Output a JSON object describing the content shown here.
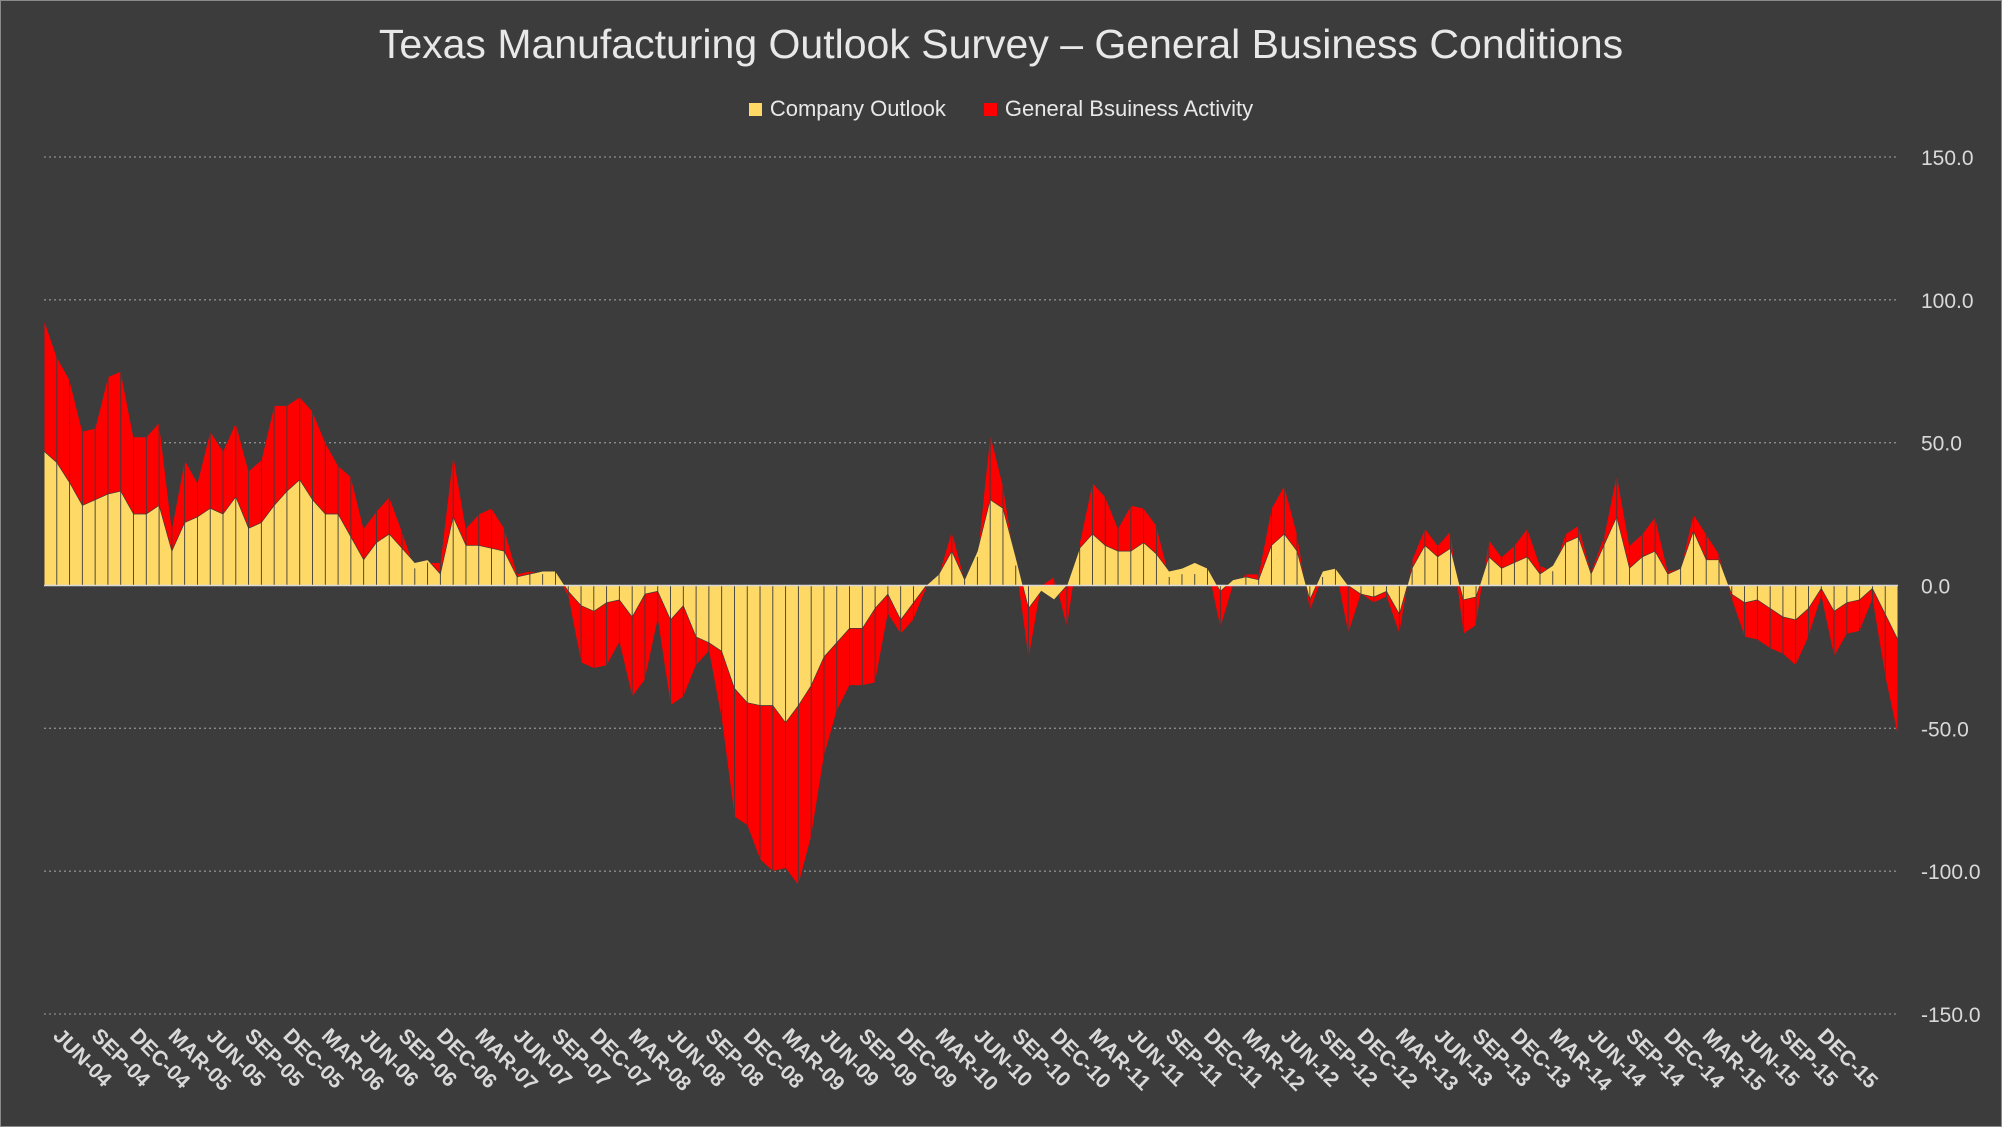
{
  "chart_data": {
    "type": "area",
    "stacked": true,
    "title": "Texas Manufacturing Outlook Survey – General Business Conditions",
    "ylim": [
      -150,
      150
    ],
    "y_ticks": [
      "150.0",
      "100.0",
      "50.0",
      "0.0",
      "-50.0",
      "-100.0",
      "-150.0"
    ],
    "y_tick_values": [
      150,
      100,
      50,
      0,
      -50,
      -100,
      -150
    ],
    "grid": "horizontal dotted",
    "legend_position": "top",
    "x_tick_labels": [
      "JUN-04",
      "SEP-04",
      "DEC-04",
      "MAR-05",
      "JUN-05",
      "SEP-05",
      "DEC-05",
      "MAR-06",
      "JUN-06",
      "SEP-06",
      "DEC-06",
      "MAR-07",
      "JUN-07",
      "SEP-07",
      "DEC-07",
      "MAR-08",
      "JUN-08",
      "SEP-08",
      "DEC-08",
      "MAR-09",
      "JUN-09",
      "SEP-09",
      "DEC-09",
      "MAR-10",
      "JUN-10",
      "SEP-10",
      "DEC-10",
      "MAR-11",
      "JUN-11",
      "SEP-11",
      "DEC-11",
      "MAR-12",
      "JUN-12",
      "SEP-12",
      "DEC-12",
      "MAR-13",
      "JUN-13",
      "SEP-13",
      "DEC-13",
      "MAR-14",
      "JUN-14",
      "SEP-14",
      "DEC-14",
      "MAR-15",
      "JUN-15",
      "SEP-15",
      "DEC-15"
    ],
    "series": [
      {
        "name": "Company Outlook",
        "color": "#ffd966",
        "values": [
          47,
          43,
          36,
          28,
          30,
          32,
          33,
          25,
          25,
          28,
          12,
          22,
          24,
          27,
          25,
          31,
          20,
          22,
          28,
          33,
          37,
          30,
          25,
          25,
          17,
          9,
          15,
          18,
          13,
          8,
          9,
          4,
          24,
          14,
          14,
          13,
          12,
          3,
          4,
          5,
          5,
          -2,
          -7,
          -9,
          -6,
          -5,
          -11,
          -3,
          -2,
          -12,
          -7,
          -18,
          -20,
          -23,
          -36,
          -41,
          -42,
          -42,
          -48,
          -42,
          -35,
          -25,
          -20,
          -15,
          -15,
          -8,
          -3,
          -12,
          -6,
          0,
          4,
          12,
          2,
          12,
          30,
          27,
          10,
          -8,
          -2,
          -5,
          0,
          13,
          18,
          14,
          12,
          12,
          15,
          11,
          5,
          6,
          8,
          6,
          -2,
          2,
          3,
          2,
          14,
          18,
          12,
          -5,
          5,
          6,
          0,
          -3,
          -4,
          -2,
          -10,
          6,
          14,
          10,
          13,
          -5,
          -4,
          10,
          6,
          8,
          10,
          4,
          7,
          15,
          17,
          4,
          14,
          24,
          6,
          10,
          12,
          4,
          6,
          19,
          9,
          9,
          -3,
          -6,
          -5,
          -8,
          -11,
          -12,
          -8,
          -1,
          -9,
          -6,
          -5,
          -1,
          -10,
          -19
        ]
      },
      {
        "name": "General Bsuiness Activity",
        "color": "#ff0000",
        "values": [
          46,
          37,
          36,
          26,
          25,
          41,
          42,
          27,
          27,
          29,
          8,
          22,
          12,
          27,
          22,
          26,
          20,
          22,
          35,
          30,
          29,
          31,
          25,
          17,
          21,
          11,
          11,
          13,
          6,
          -2,
          -1,
          4,
          22,
          6,
          11,
          14,
          8,
          1,
          1,
          -1,
          0,
          -2,
          -20,
          -20,
          -22,
          -15,
          -28,
          -30,
          -10,
          -30,
          -32,
          -10,
          -3,
          -24,
          -45,
          -43,
          -54,
          -58,
          -51,
          -63,
          -53,
          -35,
          -24,
          -20,
          -20,
          -26,
          -7,
          -5,
          -6,
          -1,
          0,
          7,
          0,
          -2,
          23,
          8,
          -3,
          -18,
          2,
          8,
          -15,
          2,
          18,
          17,
          8,
          16,
          12,
          10,
          -2,
          -2,
          -4,
          0,
          -13,
          -2,
          1,
          2,
          13,
          17,
          6,
          -4,
          -2,
          0,
          -17,
          0,
          -2,
          -2,
          -7,
          3,
          6,
          4,
          6,
          -12,
          -10,
          6,
          4,
          6,
          10,
          3,
          -2,
          3,
          4,
          1,
          3,
          15,
          8,
          8,
          12,
          1,
          0,
          6,
          9,
          2,
          -2,
          -12,
          -14,
          -14,
          -13,
          -16,
          -10,
          -3,
          -16,
          -11,
          -11,
          -4,
          -22,
          -34
        ]
      }
    ]
  }
}
